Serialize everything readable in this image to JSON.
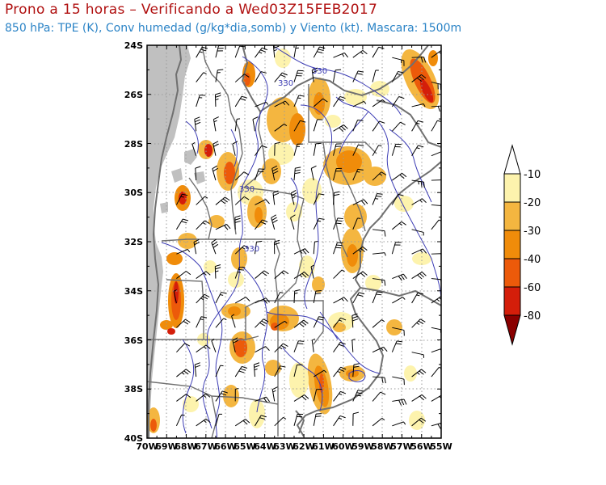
{
  "header": {
    "title": "Prono a 15 horas – Verificando a Wed03Z15FEB2017",
    "subtitle": "850 hPa: TPE (K), Conv humedad (g/kg*dia,somb) y Viento (kt). Mascara: 1500m"
  },
  "map": {
    "lat_labels": [
      "24S",
      "26S",
      "28S",
      "30S",
      "32S",
      "34S",
      "36S",
      "38S",
      "40S"
    ],
    "lon_labels": [
      "70W",
      "69W",
      "68W",
      "67W",
      "66W",
      "65W",
      "64W",
      "63W",
      "62W",
      "61W",
      "60W",
      "59W",
      "58W",
      "57W",
      "56W",
      "55W"
    ],
    "contour_labels": [
      "330",
      "330",
      "330",
      "330"
    ],
    "lon_range": [
      -70,
      -55
    ],
    "lat_range": [
      -40,
      -24
    ],
    "colors": {
      "contour": "#3c3cb4",
      "mask": "#c0c0c0",
      "border": "#707070",
      "grid": "#9a9a9a"
    }
  },
  "colorbar": {
    "labels": [
      "-10",
      "-20",
      "-30",
      "-40",
      "-60",
      "-80"
    ],
    "colors": [
      "#ffffff",
      "#fdf3ad",
      "#f4b640",
      "#f08c0a",
      "#ec5a0a",
      "#d41e0a",
      "#8a0000"
    ]
  }
}
